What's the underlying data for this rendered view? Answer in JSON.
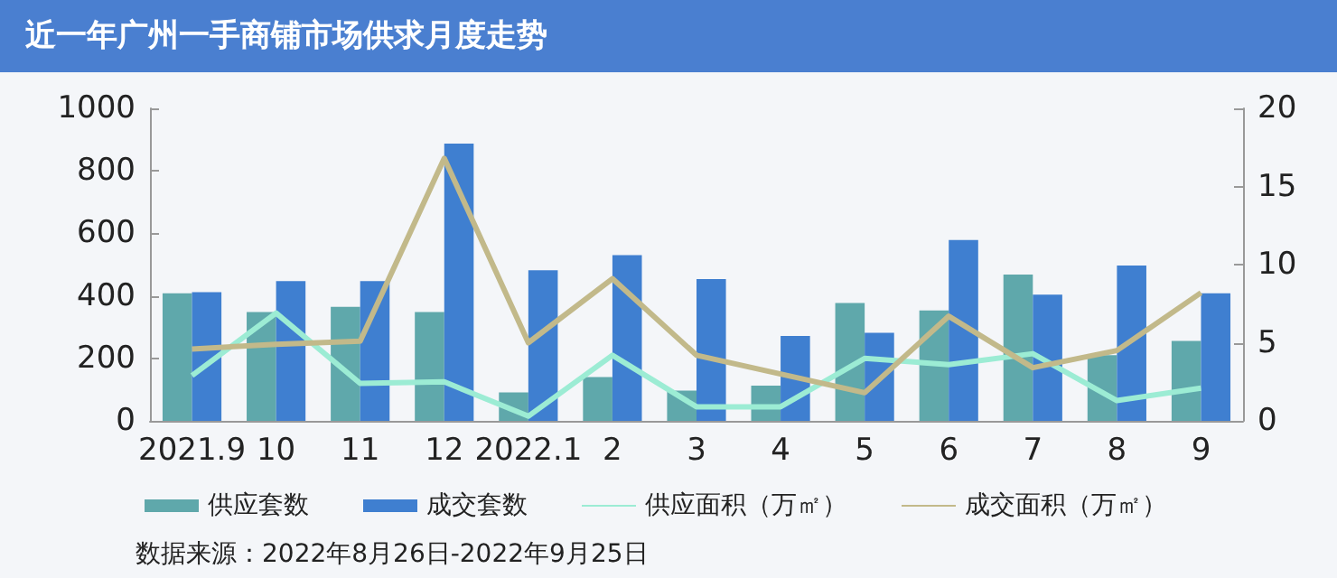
{
  "chart_data": {
    "type": "bar",
    "title": "近一年广州一手商铺市场供求月度走势",
    "categories": [
      "2021.9",
      "10",
      "11",
      "12",
      "2022.1",
      "2",
      "3",
      "4",
      "5",
      "6",
      "7",
      "8",
      "9"
    ],
    "series": [
      {
        "name": "供应套数",
        "color": "#5fa8ab",
        "values": [
          408,
          348,
          365,
          348,
          91,
          140,
          97,
          113,
          377,
          353,
          468,
          210,
          256
        ]
      },
      {
        "name": "成交套数",
        "color": "#3f7fd0",
        "values": [
          412,
          447,
          447,
          887,
          482,
          530,
          454,
          272,
          282,
          579,
          404,
          497,
          408
        ]
      },
      {
        "name": "供应面积（万㎡）",
        "type": "line",
        "axis": "y2",
        "color": "#9cecd4",
        "values": [
          2.9,
          6.9,
          2.4,
          2.5,
          0.3,
          4.2,
          0.9,
          0.9,
          4.0,
          3.6,
          4.3,
          1.3,
          2.1
        ]
      },
      {
        "name": "成交面积（万㎡）",
        "type": "line",
        "axis": "y2",
        "color": "#c2b98a",
        "values": [
          4.6,
          4.9,
          5.1,
          16.8,
          5.0,
          9.1,
          4.2,
          3.0,
          1.8,
          6.7,
          3.4,
          4.5,
          8.2
        ]
      }
    ],
    "ylim": [
      0,
      1000
    ],
    "yticks": [
      0,
      200,
      400,
      600,
      800,
      1000
    ],
    "y2lim": [
      0,
      20
    ],
    "y2ticks": [
      0,
      5,
      10,
      15,
      20
    ],
    "grid": false,
    "legend": "bottom",
    "marker": "none",
    "line_style": "solid",
    "annotations": [
      "数据来源：2022年8月26日-2022年9月25日"
    ]
  }
}
